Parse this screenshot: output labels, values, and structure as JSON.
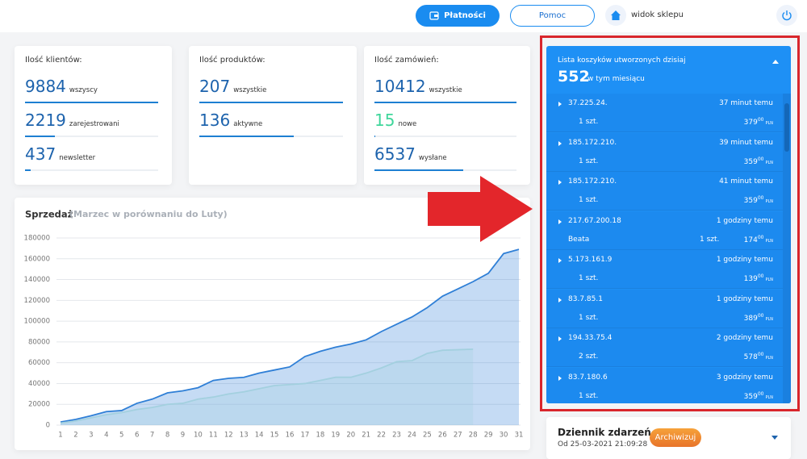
{
  "topbar": {
    "buttons": [
      "Płatności",
      "Pomoc"
    ],
    "shop_link": "widok sklepu"
  },
  "cards": [
    {
      "title": "Ilość klientów:",
      "stats": [
        {
          "value": 9884,
          "label": "wszyscy"
        },
        {
          "value": 2219,
          "label": "zarejestrowani"
        },
        {
          "value": 437,
          "label": "newsletter"
        }
      ]
    },
    {
      "title": "Ilość produktów:",
      "stats": [
        {
          "value": 207,
          "label": "wszystkie"
        },
        {
          "value": 136,
          "label": "aktywne"
        }
      ]
    },
    {
      "title": "Ilość zamówień:",
      "stats": [
        {
          "value": 10412,
          "label": "wszystkie"
        },
        {
          "value": 15,
          "label": "nowe",
          "color": "#3fd69b"
        },
        {
          "value": 6537,
          "label": "wysłane"
        }
      ]
    }
  ],
  "chart_data": {
    "type": "area",
    "title": "Sprzedaż",
    "subtitle": "(Marzec w porównaniu do Luty)",
    "x": [
      1,
      2,
      3,
      4,
      5,
      6,
      7,
      8,
      9,
      10,
      11,
      12,
      13,
      14,
      15,
      16,
      17,
      18,
      19,
      20,
      21,
      22,
      23,
      24,
      25,
      26,
      27,
      28,
      29,
      30,
      31
    ],
    "xlim": [
      1,
      31
    ],
    "ylim": [
      0,
      180000
    ],
    "yticks": [
      0,
      20000,
      40000,
      60000,
      80000,
      100000,
      120000,
      140000,
      160000,
      180000
    ],
    "grid": true,
    "series": [
      {
        "color": "#2f7fd6",
        "values": [
          3000,
          5500,
          9000,
          13000,
          14000,
          21000,
          25000,
          31000,
          33000,
          36000,
          43000,
          45000,
          46000,
          50000,
          53000,
          56000,
          66000,
          71000,
          75000,
          78000,
          82000,
          90000,
          97000,
          104000,
          113000,
          124000,
          131000,
          138000,
          146000,
          165000,
          169000
        ]
      },
      {
        "color": "#a3d0df",
        "values": [
          2000,
          4000,
          7000,
          10000,
          12000,
          15000,
          17000,
          20000,
          21000,
          25000,
          27000,
          30000,
          32000,
          35000,
          38000,
          39000,
          40000,
          43000,
          46000,
          46000,
          50000,
          55000,
          61000,
          62000,
          69000,
          72000,
          72500,
          73000,
          null,
          null,
          null
        ]
      }
    ]
  },
  "carts": {
    "title": "Lista koszyków utworzonych dzisiaj",
    "count": 552,
    "count_label": "w tym miesiącu",
    "items": [
      {
        "ip": "37.225.24.",
        "time": "37 minut temu",
        "qty": "1 szt.",
        "price": "379",
        "cents": "00",
        "currency": "PLN"
      },
      {
        "ip": "185.172.210.",
        "time": "39 minut temu",
        "qty": "1 szt.",
        "price": "359",
        "cents": "00",
        "currency": "PLN"
      },
      {
        "ip": "185.172.210.",
        "time": "41 minut temu",
        "qty": "1 szt.",
        "price": "359",
        "cents": "00",
        "currency": "PLN"
      },
      {
        "ip": "217.67.200.18",
        "time": "1 godziny temu",
        "name": "Beata",
        "qty": "1 szt.",
        "price": "174",
        "cents": "00",
        "currency": "PLN"
      },
      {
        "ip": "5.173.161.9",
        "time": "1 godziny temu",
        "qty": "1 szt.",
        "price": "139",
        "cents": "00",
        "currency": "PLN"
      },
      {
        "ip": "83.7.85.1",
        "time": "1 godziny temu",
        "qty": "1 szt.",
        "price": "389",
        "cents": "00",
        "currency": "PLN"
      },
      {
        "ip": "194.33.75.4",
        "time": "2 godziny temu",
        "qty": "2 szt.",
        "price": "578",
        "cents": "00",
        "currency": "PLN"
      },
      {
        "ip": "83.7.180.6",
        "time": "3 godziny temu",
        "qty": "1 szt.",
        "price": "359",
        "cents": "00",
        "currency": "PLN"
      }
    ]
  },
  "log": {
    "title": "Dziennik zdarzeń",
    "since": "Od 25-03-2021 21:09:28",
    "button": "Archiwizuj"
  }
}
